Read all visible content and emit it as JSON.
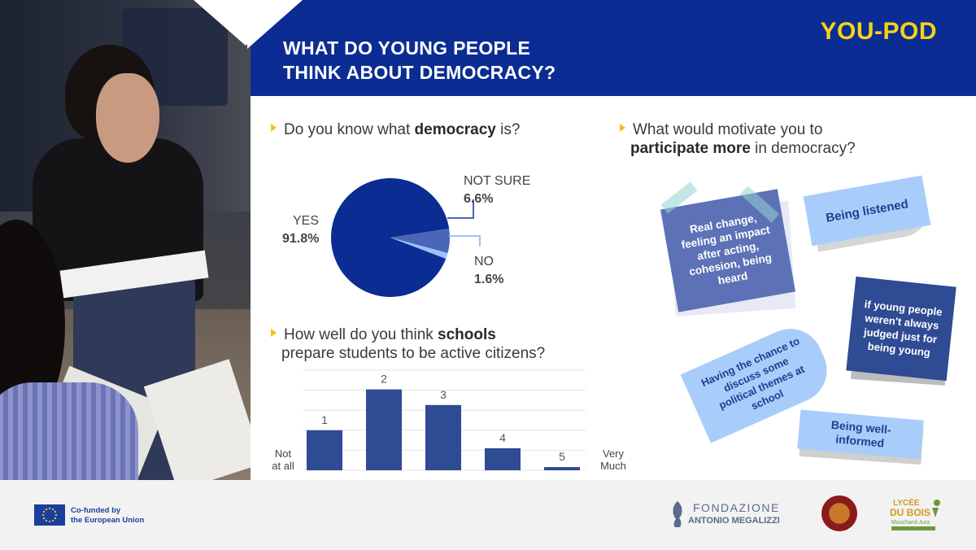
{
  "header": {
    "title_line1": "WHAT DO YOUNG PEOPLE",
    "title_line2": "THINK ABOUT DEMOCRACY?",
    "logo": "YOU-POD",
    "background_color": "#0b2d93",
    "logo_color": "#f7d117"
  },
  "q1": {
    "prefix": "Do you know what ",
    "bold": "democracy",
    "suffix": " is?"
  },
  "q2": {
    "line1_prefix": "How well do you think ",
    "line1_bold": "schools",
    "line2": "prepare students to be active citizens?"
  },
  "q3": {
    "line1": "What would motivate you to",
    "line2_bold": "participate more",
    "line2_suffix": " in democracy?"
  },
  "chart_data": [
    {
      "type": "pie",
      "title": "Do you know what democracy is?",
      "labels": [
        "YES",
        "NOT SURE",
        "NO"
      ],
      "values": [
        91.8,
        6.6,
        1.6
      ],
      "value_labels": [
        "91.8%",
        "6.6%",
        "1.6%"
      ],
      "colors": [
        "#0b2d93",
        "#4a66b8",
        "#9cc0ff"
      ]
    },
    {
      "type": "bar",
      "title": "How well do you think schools prepare students to be active citizens?",
      "categories": [
        "1",
        "2",
        "3",
        "4",
        "5"
      ],
      "values": [
        10,
        20.2,
        16.3,
        5.5,
        0.8
      ],
      "xlabel_left": "Not at all",
      "xlabel_right": "Very Much",
      "ylim": [
        0,
        25
      ],
      "grid": true,
      "color": "#2e4b93"
    }
  ],
  "notes": [
    {
      "text": "Real change, feeling an impact after acting, cohesion, being heard"
    },
    {
      "text": "Being listened"
    },
    {
      "text": "if young people weren't always judged just for being young"
    },
    {
      "text": "Having the chance to discuss some political themes at school"
    },
    {
      "text": "Being well-informed"
    }
  ],
  "footer": {
    "eu_line1": "Co-funded by",
    "eu_line2": "the European Union",
    "fondazione_line1": "FONDAZIONE",
    "fondazione_line2": "ANTONIO MEGALIZZI",
    "lycee_line1": "LYCÉE",
    "lycee_line2": "DU BOIS",
    "lycee_line3": "Mouchard-Jura"
  }
}
